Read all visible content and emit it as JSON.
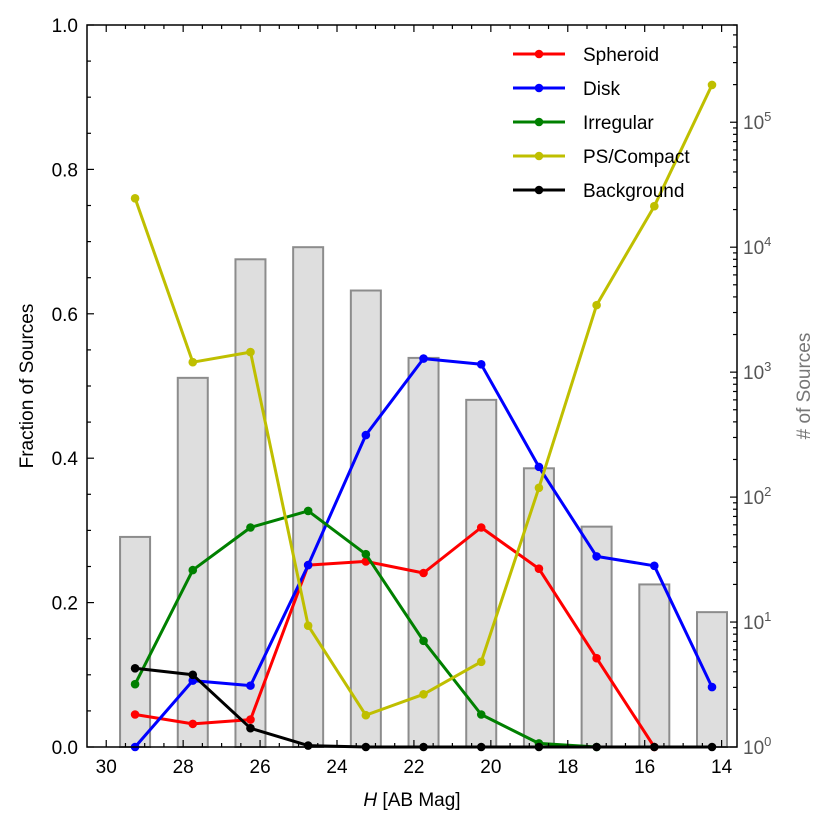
{
  "chart_data": {
    "type": "line+bar",
    "xlabel_italic": "H",
    "xlabel_rest": " [AB Mag]",
    "ylabel": "Fraction of Sources",
    "ylabel_right": "# of Sources",
    "xlim": [
      30.5,
      13.6
    ],
    "ylim": [
      0.0,
      1.0
    ],
    "ylim_right_log": [
      1,
      600000
    ],
    "x_ticks": [
      30,
      28,
      26,
      24,
      22,
      20,
      18,
      16,
      14
    ],
    "x_tick_labels": [
      "30",
      "28",
      "26",
      "24",
      "22",
      "20",
      "18",
      "16",
      "14"
    ],
    "y_ticks": [
      0.0,
      0.2,
      0.4,
      0.6,
      0.8,
      1.0
    ],
    "y_tick_labels": [
      "0.0",
      "0.2",
      "0.4",
      "0.6",
      "0.8",
      "1.0"
    ],
    "y_right_ticks": [
      {
        "base": "10",
        "exp": "0",
        "value": 1
      },
      {
        "base": "10",
        "exp": "1",
        "value": 10
      },
      {
        "base": "10",
        "exp": "2",
        "value": 100
      },
      {
        "base": "10",
        "exp": "3",
        "value": 1000
      },
      {
        "base": "10",
        "exp": "4",
        "value": 10000
      },
      {
        "base": "10",
        "exp": "5",
        "value": 100000
      }
    ],
    "histogram": {
      "bin_centers": [
        29.25,
        27.75,
        26.25,
        24.75,
        23.25,
        21.75,
        20.25,
        18.75,
        17.25,
        15.75,
        14.25
      ],
      "counts": [
        48,
        900,
        8000,
        10000,
        4500,
        1300,
        600,
        170,
        58,
        20,
        12
      ]
    },
    "x": [
      29.25,
      27.75,
      26.25,
      24.75,
      23.25,
      21.75,
      20.25,
      18.75,
      17.25,
      15.75,
      14.25
    ],
    "series": [
      {
        "name": "Spheroid",
        "color": "#ff0000",
        "values": [
          0.045,
          0.032,
          0.038,
          0.252,
          0.257,
          0.241,
          0.304,
          0.247,
          0.123,
          0.0,
          null
        ]
      },
      {
        "name": "Disk",
        "color": "#0000ff",
        "values": [
          0.0,
          0.092,
          0.085,
          0.252,
          0.432,
          0.538,
          0.53,
          0.388,
          0.264,
          0.251,
          0.083
        ]
      },
      {
        "name": "Irregular",
        "color": "#008000",
        "values": [
          0.087,
          0.245,
          0.304,
          0.327,
          0.267,
          0.147,
          0.045,
          0.005,
          0.0,
          null,
          null
        ]
      },
      {
        "name": "PS/Compact",
        "color": "#bfbf00",
        "values": [
          0.76,
          0.533,
          0.547,
          0.168,
          0.044,
          0.073,
          0.118,
          0.359,
          0.612,
          0.749,
          0.917
        ]
      },
      {
        "name": "Background",
        "color": "#000000",
        "values": [
          0.109,
          0.1,
          0.026,
          0.002,
          0.0,
          0.0,
          0.0,
          0.0,
          0.0,
          0.0,
          0.0
        ]
      }
    ],
    "legend_position": "top-right"
  }
}
